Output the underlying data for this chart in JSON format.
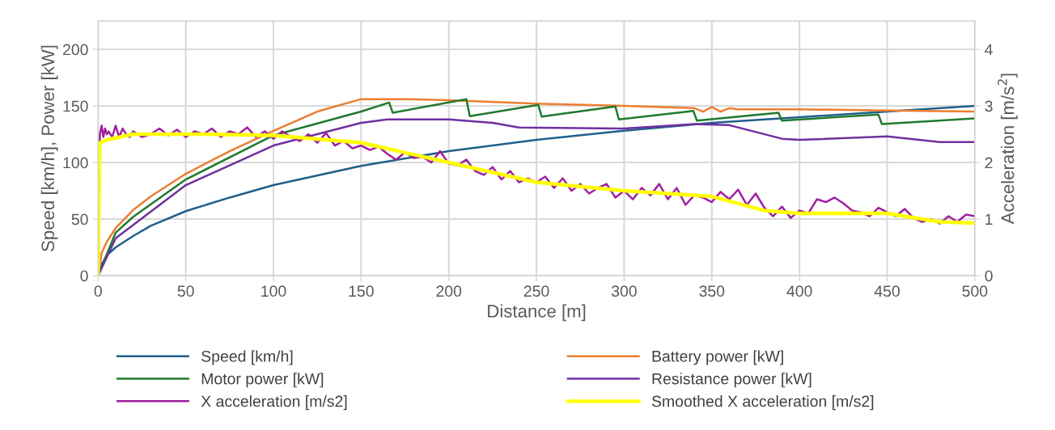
{
  "chart_data": {
    "type": "line",
    "xlabel": "Distance [m]",
    "ylabel": "Speed [km/h], Power [kW]",
    "y2label": "Acceleration [m/s$^{2}$]",
    "xlim": [
      0,
      500
    ],
    "xticks": [
      0,
      50,
      100,
      150,
      200,
      250,
      300,
      350,
      400,
      450,
      500
    ],
    "ylim": [
      0,
      225
    ],
    "yticks": [
      0,
      50,
      100,
      150,
      200
    ],
    "y2lim": [
      0,
      4.5
    ],
    "y2ticks": [
      0,
      1,
      2,
      3,
      4
    ],
    "grid": true,
    "legend": "bottom",
    "marker": "none",
    "line_style": "solid",
    "series": [
      {
        "name": "Speed [km/h]",
        "color": "#1f5f8b",
        "x": [
          0,
          2,
          5,
          10,
          20,
          30,
          50,
          75,
          100,
          150,
          200,
          250,
          300,
          350,
          400,
          450,
          500
        ],
        "values": [
          0,
          10,
          18,
          25,
          35,
          44,
          57,
          69,
          80,
          97,
          110,
          120,
          128,
          135,
          140,
          145,
          150
        ]
      },
      {
        "name": "Battery power [kW]",
        "color": "#ed7d31",
        "x": [
          0,
          2,
          5,
          10,
          20,
          30,
          50,
          75,
          100,
          125,
          150,
          175,
          200,
          250,
          300,
          340,
          345,
          350,
          355,
          360,
          365,
          400,
          450,
          500
        ],
        "values": [
          0,
          20,
          30,
          42,
          58,
          70,
          90,
          110,
          128,
          145,
          156,
          156,
          155,
          152,
          150,
          148,
          145,
          149,
          145,
          148,
          147,
          147,
          146,
          145
        ]
      },
      {
        "name": "Motor power [kW]",
        "color": "#217a2e",
        "x": [
          0,
          10,
          20,
          50,
          100,
          150,
          166,
          168,
          210,
          212,
          251,
          253,
          295,
          297,
          339.5,
          341.5,
          388,
          390,
          445,
          447,
          500
        ],
        "values": [
          0,
          38,
          52,
          85,
          124,
          145,
          153,
          144,
          156,
          141,
          151,
          140.5,
          149.5,
          138,
          145.5,
          137,
          144,
          137,
          142.4,
          134,
          139
        ]
      },
      {
        "name": "Resistance power [kW]",
        "color": "#7030a0",
        "x": [
          0,
          10,
          50,
          100,
          150,
          165,
          200,
          225,
          240,
          300,
          340,
          360,
          390,
          400,
          450,
          480,
          500
        ],
        "values": [
          0,
          33,
          80,
          115,
          135,
          138,
          138,
          135,
          131,
          130,
          134,
          133,
          121,
          120,
          123,
          118,
          118
        ]
      },
      {
        "name": "X acceleration [m/s2]",
        "color": "#a020a0",
        "axis": "y2",
        "x": [
          0,
          1,
          2,
          3,
          4,
          5,
          6,
          8,
          10,
          12,
          14,
          16,
          18,
          20,
          25,
          30,
          35,
          40,
          45,
          50,
          55,
          60,
          65,
          70,
          75,
          80,
          85,
          90,
          95,
          100,
          105,
          110,
          115,
          120,
          125,
          130,
          135,
          140,
          145,
          150,
          155,
          160,
          165,
          170,
          175,
          180,
          185,
          190,
          195,
          200,
          205,
          210,
          215,
          220,
          225,
          230,
          235,
          240,
          245,
          250,
          255,
          260,
          265,
          270,
          275,
          280,
          285,
          290,
          295,
          300,
          305,
          310,
          315,
          320,
          325,
          330,
          335,
          340,
          345,
          350,
          355,
          360,
          365,
          370,
          375,
          380,
          385,
          390,
          395,
          400,
          405,
          410,
          415,
          420,
          425,
          430,
          435,
          440,
          445,
          450,
          455,
          460,
          465,
          470,
          475,
          480,
          485,
          490,
          495,
          500
        ],
        "values": [
          0,
          2.5,
          2.65,
          2.45,
          2.6,
          2.5,
          2.55,
          2.45,
          2.65,
          2.45,
          2.6,
          2.5,
          2.45,
          2.55,
          2.45,
          2.5,
          2.6,
          2.48,
          2.58,
          2.45,
          2.55,
          2.5,
          2.6,
          2.45,
          2.55,
          2.5,
          2.62,
          2.45,
          2.55,
          2.42,
          2.55,
          2.45,
          2.38,
          2.5,
          2.35,
          2.52,
          2.3,
          2.38,
          2.25,
          2.3,
          2.22,
          2.28,
          2.15,
          2.05,
          2.18,
          2.08,
          2.1,
          2.0,
          2.2,
          1.98,
          1.95,
          2.05,
          1.85,
          1.78,
          1.92,
          1.7,
          1.85,
          1.65,
          1.72,
          1.65,
          1.75,
          1.55,
          1.72,
          1.5,
          1.62,
          1.45,
          1.55,
          1.62,
          1.38,
          1.5,
          1.35,
          1.55,
          1.42,
          1.62,
          1.35,
          1.55,
          1.25,
          1.42,
          1.38,
          1.3,
          1.48,
          1.35,
          1.52,
          1.25,
          1.45,
          1.2,
          1.05,
          1.22,
          1.02,
          1.15,
          1.1,
          1.35,
          1.3,
          1.38,
          1.28,
          1.15,
          1.12,
          1.05,
          1.2,
          1.12,
          1.05,
          1.18,
          1.02,
          0.95,
          1.0,
          0.92,
          1.05,
          0.95,
          1.08,
          1.05
        ]
      },
      {
        "name": "Smoothed X acceleration [m/s2]",
        "color": "#ffff00",
        "axis": "y2",
        "x": [
          0,
          1,
          5,
          20,
          60,
          100,
          150,
          200,
          250,
          300,
          350,
          380,
          400,
          450,
          480,
          500
        ],
        "values": [
          0,
          2.35,
          2.4,
          2.5,
          2.5,
          2.48,
          2.35,
          2.0,
          1.65,
          1.5,
          1.4,
          1.15,
          1.1,
          1.1,
          0.95,
          0.93
        ]
      }
    ]
  }
}
